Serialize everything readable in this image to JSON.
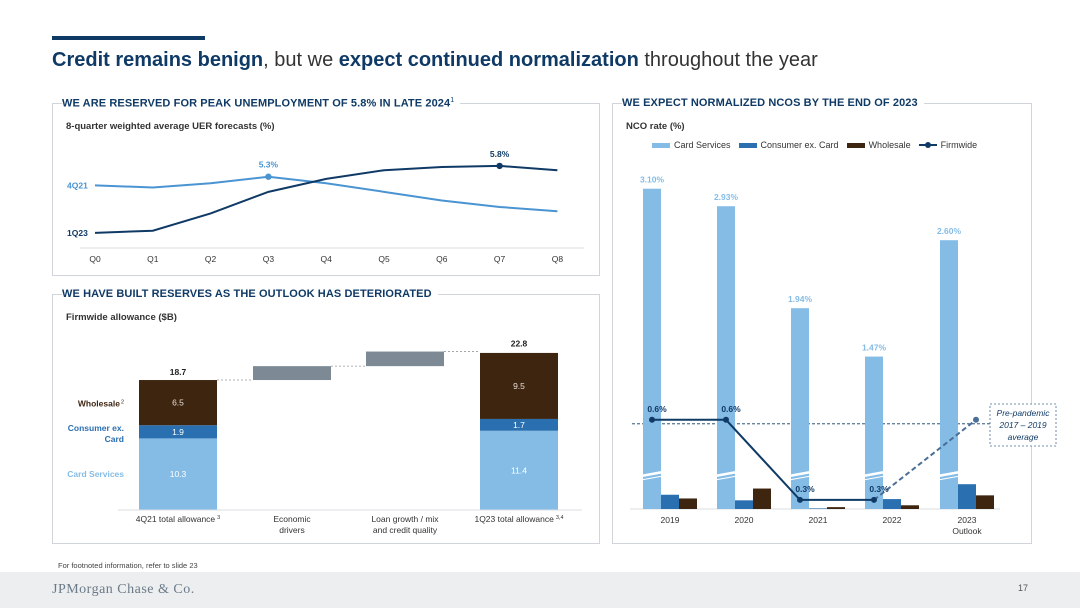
{
  "title": {
    "part1": "Credit remains benign",
    "part2": ", but we ",
    "part3": "expect continued normalization",
    "part4": " throughout the year"
  },
  "uer_panel": {
    "heading": "WE ARE RESERVED FOR PEAK UNEMPLOYMENT OF 5.8% IN LATE 2024",
    "heading_footnote": "1",
    "subtitle": "8-quarter weighted average UER forecasts (%)"
  },
  "allowance_panel": {
    "heading": "WE HAVE BUILT RESERVES AS THE OUTLOOK HAS DETERIORATED",
    "subtitle": "Firmwide allowance ($B)"
  },
  "nco_panel": {
    "heading": "WE EXPECT NORMALIZED NCOS BY THE END OF 2023",
    "subtitle": "NCO rate (%)",
    "annotation": [
      "Pre-pandemic",
      "2017 – 2019",
      "average"
    ]
  },
  "colors": {
    "navy": "#0f3a66",
    "card_services": "#85bce6",
    "consumer_ex_card": "#2a6fb0",
    "wholesale": "#3e2510",
    "uer_4q21": "#4a94d2",
    "driver_gray": "#7d8a96"
  },
  "chart_data": [
    {
      "type": "line",
      "title": "8-quarter weighted average UER forecasts (%)",
      "x": [
        "Q0",
        "Q1",
        "Q2",
        "Q3",
        "Q4",
        "Q5",
        "Q6",
        "Q7",
        "Q8"
      ],
      "series": [
        {
          "name": "4Q21",
          "values": [
            4.9,
            4.8,
            5.0,
            5.3,
            5.0,
            4.6,
            4.2,
            3.9,
            3.7
          ]
        },
        {
          "name": "1Q23",
          "values": [
            2.7,
            2.8,
            3.6,
            4.6,
            5.2,
            5.6,
            5.75,
            5.8,
            5.6
          ]
        }
      ],
      "data_labels": [
        {
          "series": "4Q21",
          "x": "Q3",
          "label": "5.3%"
        },
        {
          "series": "1Q23",
          "x": "Q7",
          "label": "5.8%"
        }
      ],
      "ylim": [
        2,
        7
      ]
    },
    {
      "type": "bar",
      "title": "Firmwide allowance ($B)",
      "categories": [
        "4Q21 total allowance",
        "Economic drivers",
        "Loan growth / mix and credit quality",
        "1Q23 total allowance"
      ],
      "category_lines": [
        [
          "4Q21 total allowance"
        ],
        [
          "Economic",
          "drivers"
        ],
        [
          "Loan growth / mix",
          "and credit quality"
        ],
        [
          "1Q23 total allowance"
        ]
      ],
      "category_footnotes": [
        "3",
        "",
        "",
        "3,4"
      ],
      "series": [
        {
          "name": "Card Services",
          "values": [
            10.3,
            null,
            null,
            11.4
          ]
        },
        {
          "name": "Consumer ex. Card",
          "values": [
            1.9,
            null,
            null,
            1.7
          ]
        },
        {
          "name": "Wholesale",
          "values": [
            6.5,
            null,
            null,
            9.5
          ]
        }
      ],
      "series_labels": [
        "Card Services",
        "Consumer ex. Card",
        "Wholesale"
      ],
      "wholesale_footnote": "2",
      "totals": [
        18.7,
        null,
        null,
        22.8
      ],
      "total_labels": [
        "18.7",
        "22.8"
      ],
      "drivers": [
        {
          "category": "Economic drivers",
          "start": 18.7,
          "end": 20.7
        },
        {
          "category": "Loan growth / mix and credit quality",
          "start": 20.7,
          "end": 22.8
        }
      ],
      "ylim": [
        0,
        24
      ]
    },
    {
      "type": "bar",
      "title": "NCO rate (%)",
      "categories": [
        "2019",
        "2020",
        "2021",
        "2022",
        "2023 Outlook"
      ],
      "category_lines": [
        [
          "2019"
        ],
        [
          "2020"
        ],
        [
          "2021"
        ],
        [
          "2022"
        ],
        [
          "2023",
          "Outlook"
        ]
      ],
      "series": [
        {
          "name": "Card Services",
          "values": [
            3.1,
            2.93,
            1.94,
            1.47,
            2.6
          ],
          "labels": [
            "3.10%",
            "2.93%",
            "1.94%",
            "1.47%",
            "2.60%"
          ]
        },
        {
          "name": "Consumer ex. Card",
          "values": [
            0.23,
            0.14,
            0.01,
            0.16,
            0.4
          ]
        },
        {
          "name": "Wholesale",
          "values": [
            0.17,
            0.33,
            0.03,
            0.06,
            0.22
          ]
        },
        {
          "name": "Firmwide",
          "type": "line",
          "values": [
            0.6,
            0.6,
            0.3,
            0.3,
            0.6
          ],
          "labels": [
            "0.6%",
            "0.6%",
            "0.3%",
            "0.3%",
            ""
          ]
        }
      ],
      "reference_line": {
        "value": 0.6,
        "label": "Pre-pandemic 2017 – 2019 average"
      },
      "axis_break": true,
      "legend_position": "top"
    }
  ],
  "footnote": "For footnoted information, refer to slide 23",
  "logo": "JPMorgan Chase & Co.",
  "page_number": "17"
}
